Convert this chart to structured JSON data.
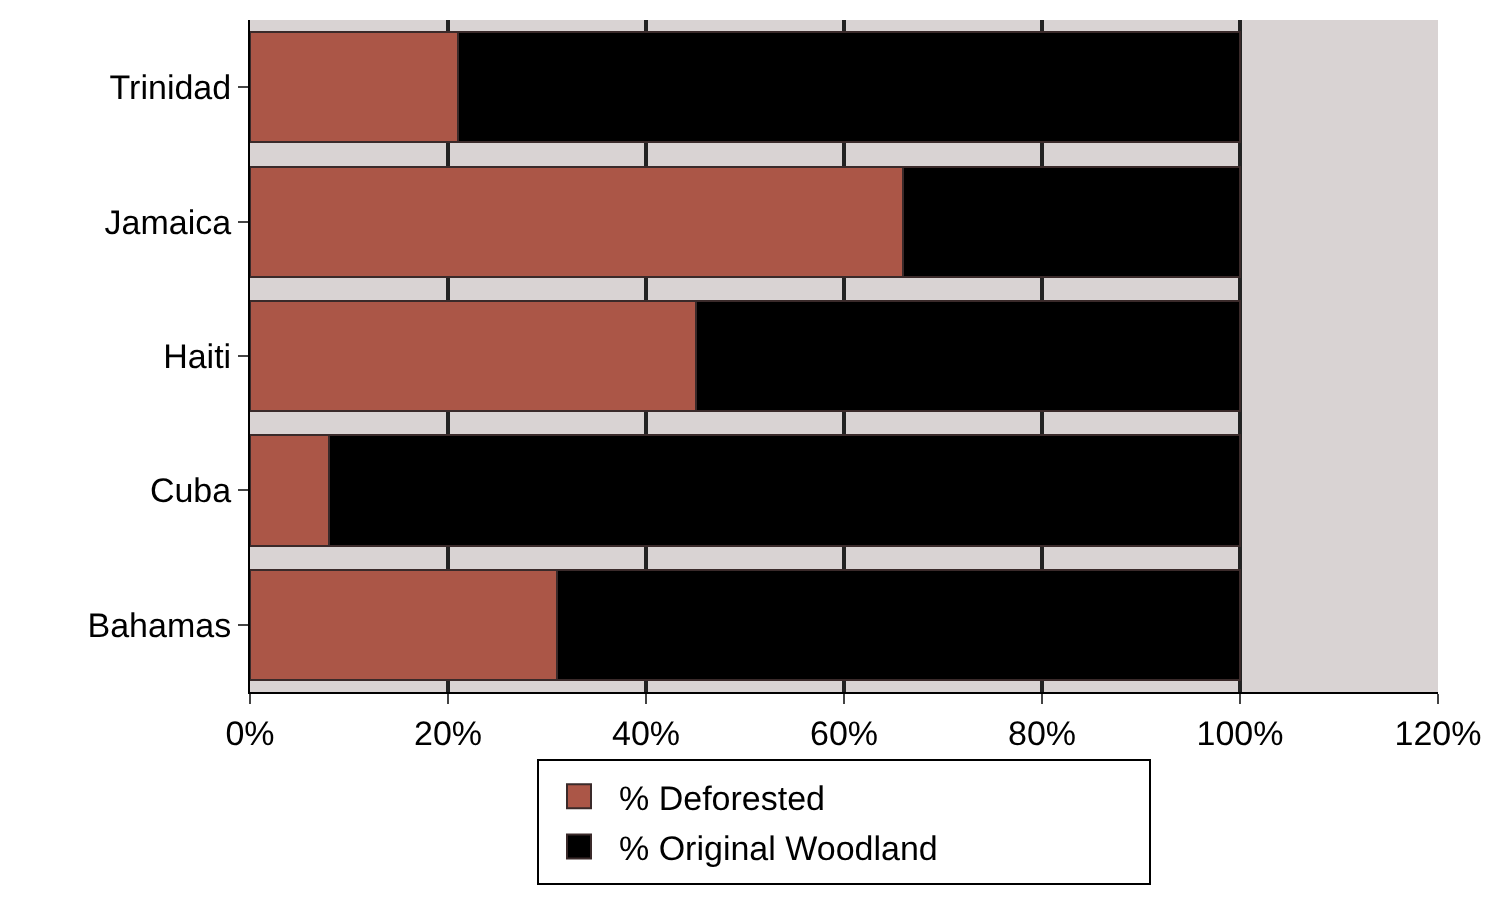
{
  "chart_data": {
    "type": "bar",
    "orientation": "horizontal",
    "stacked": true,
    "categories": [
      "Trinidad",
      "Jamaica",
      "Haiti",
      "Cuba",
      "Bahamas"
    ],
    "series": [
      {
        "name": "% Deforested",
        "color": "#ab5647",
        "values": [
          21,
          66,
          45,
          8,
          31
        ]
      },
      {
        "name": "% Original Woodland",
        "color": "#000000",
        "values": [
          79,
          34,
          55,
          92,
          69
        ]
      }
    ],
    "xlim": [
      0,
      120
    ],
    "xticks": [
      {
        "value": 0,
        "label": "0%"
      },
      {
        "value": 20,
        "label": "20%"
      },
      {
        "value": 40,
        "label": "40%"
      },
      {
        "value": 60,
        "label": "60%"
      },
      {
        "value": 80,
        "label": "80%"
      },
      {
        "value": 100,
        "label": "100%"
      },
      {
        "value": 120,
        "label": "120%"
      }
    ],
    "grid": "x",
    "legend": "bottom"
  }
}
